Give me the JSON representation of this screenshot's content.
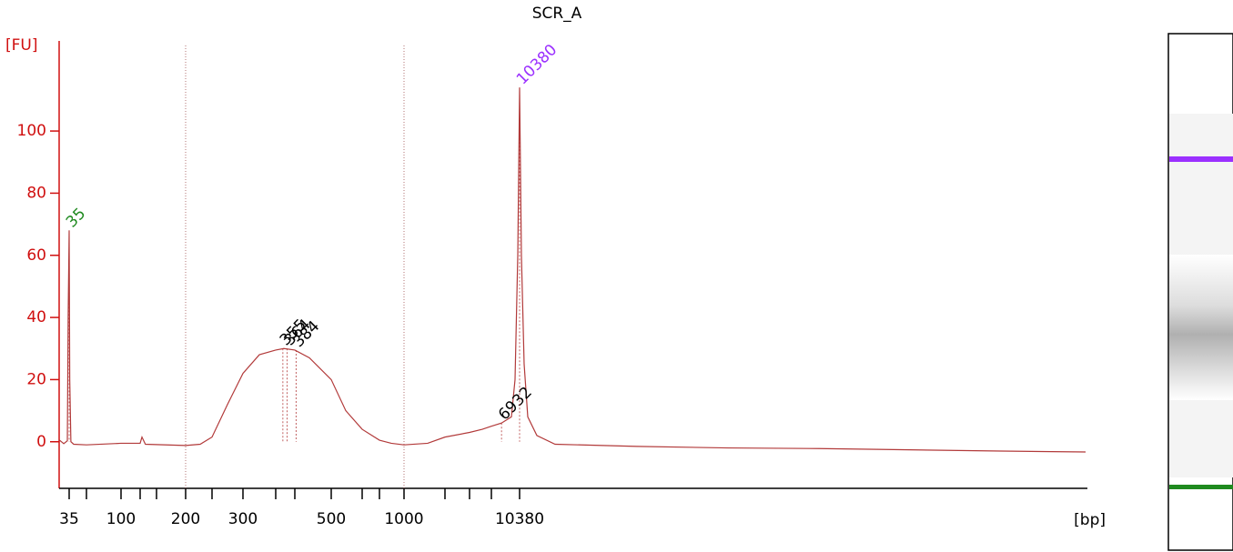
{
  "chart_data": {
    "type": "line",
    "title": "SCR_A",
    "ylabel": "[FU]",
    "xlabel": "[bp]",
    "ylim": [
      -15,
      129
    ],
    "yticks": [
      0,
      20,
      40,
      60,
      80,
      100
    ],
    "xlim": [
      30,
      40000
    ],
    "xticks": [
      35,
      {
        "value": 50,
        "label": null
      },
      100,
      {
        "value": 125,
        "label": null
      },
      {
        "value": 150,
        "label": null
      },
      200,
      {
        "value": 250,
        "label": null
      },
      300,
      {
        "value": 340,
        "label": null
      },
      {
        "value": 380,
        "label": null
      },
      500,
      {
        "value": 600,
        "label": null
      },
      {
        "value": 700,
        "label": null
      },
      1000,
      {
        "value": 2000,
        "label": null
      },
      {
        "value": 3000,
        "label": null
      },
      {
        "value": 5000,
        "label": null
      },
      10380
    ],
    "region_lines": [
      200,
      1000
    ],
    "series": [
      {
        "color": "#b23a3a",
        "x": [
          30,
          32.3,
          34.1,
          34.5,
          35,
          35.5,
          36.5,
          38.9,
          50,
          100,
          125,
          127.8,
          133,
          200,
          227.6,
          250,
          275,
          300,
          320,
          340,
          357,
          380,
          428,
          500,
          547,
          600,
          700,
          844,
          1000,
          1578,
          2000,
          3000,
          4167,
          5000,
          6932,
          8818,
          9512,
          10033,
          10380,
          10475,
          10617,
          10807,
          11282,
          12231,
          16503,
          21250,
          25997,
          30743,
          35490,
          39905
        ],
        "values": [
          0.6,
          -0.6,
          0.3,
          40,
          68,
          20,
          0,
          -0.8,
          -1,
          -0.5,
          -0.5,
          1.5,
          -0.8,
          -1.2,
          -0.8,
          1.5,
          12,
          22,
          28,
          29.5,
          30,
          29.5,
          27,
          20,
          10,
          4,
          0.5,
          -0.5,
          -1,
          -0.5,
          1.5,
          3,
          4,
          5,
          6,
          8,
          20,
          60,
          114,
          60,
          25,
          8,
          2,
          -0.8,
          -1.5,
          -2,
          -2.2,
          -2.6,
          -3,
          -3.3
        ]
      }
    ],
    "peaks": [
      {
        "x": 35,
        "y": 68,
        "color": "#1f8a1f"
      },
      {
        "x": 355,
        "y": 30,
        "color": "#000000"
      },
      {
        "x": 364,
        "y": 30,
        "color": "#000000"
      },
      {
        "x": 384,
        "y": 29.5,
        "color": "#000000"
      },
      {
        "x": 6932,
        "y": 6,
        "color": "#000000"
      },
      {
        "x": 10380,
        "y": 114,
        "color": "#9b30ff"
      }
    ]
  }
}
